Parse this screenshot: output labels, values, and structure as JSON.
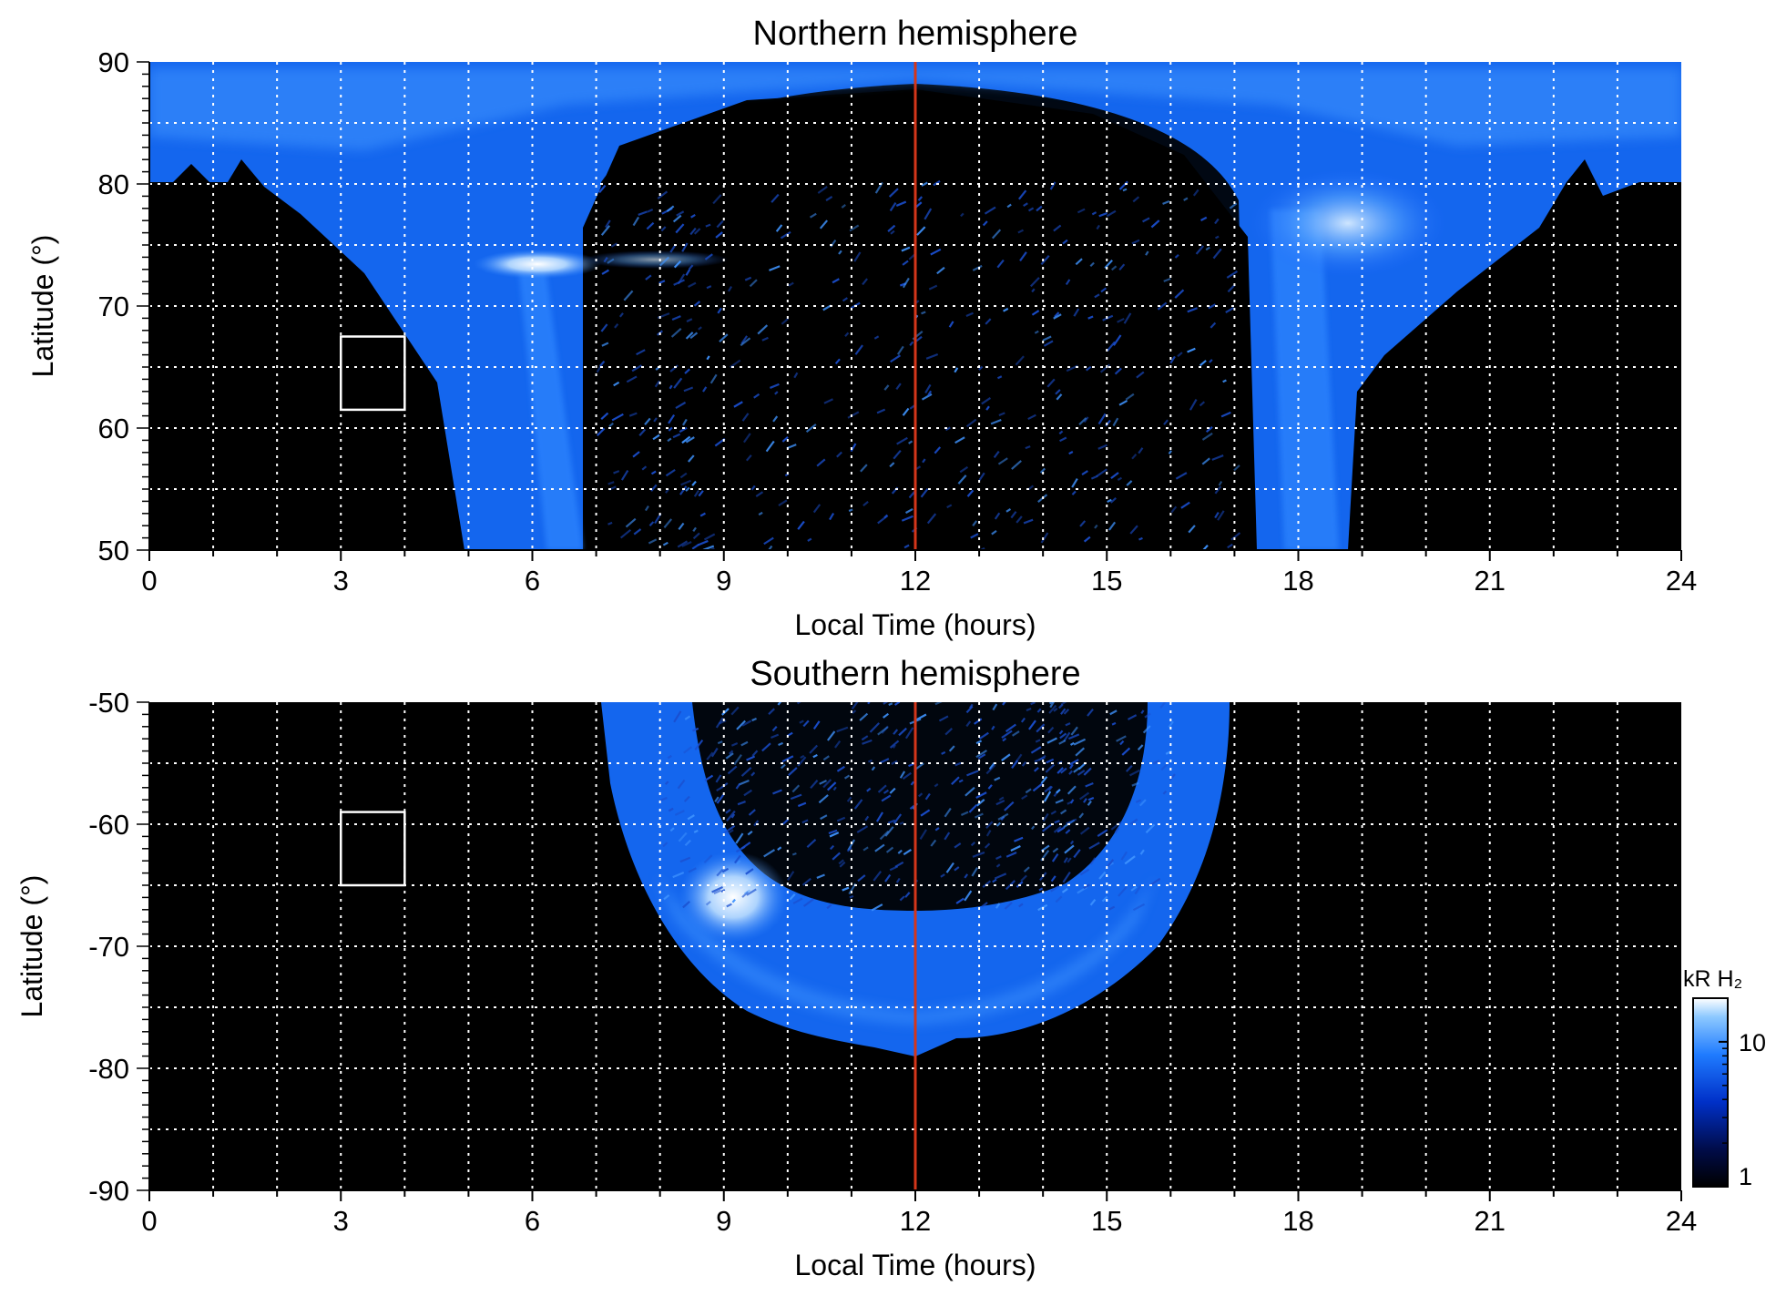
{
  "chart_data": [
    {
      "type": "heatmap",
      "title": "Northern hemisphere",
      "xlabel": "Local Time (hours)",
      "ylabel": "Latitude (°)",
      "xlim": [
        0,
        24
      ],
      "ylim": [
        50,
        90
      ],
      "xticks": [
        "0",
        "3",
        "6",
        "9",
        "12",
        "15",
        "18",
        "21",
        "24"
      ],
      "yticks": [
        "50",
        "60",
        "70",
        "80",
        "90"
      ],
      "grid": true,
      "noon_line_x": 12,
      "box": {
        "x0": 3,
        "x1": 4,
        "y0": 61.5,
        "y1": 67.5
      },
      "emission_regions": [
        {
          "shape": "polar cap band",
          "lt_range": [
            0,
            24
          ],
          "lat_range": [
            80,
            90
          ],
          "level": "moderate"
        },
        {
          "shape": "auroral oval edge",
          "lt_range": [
            5,
            7
          ],
          "lat_range": [
            50,
            78
          ],
          "level": "moderate"
        },
        {
          "shape": "dawn spot",
          "lt_center": 6.5,
          "lat_center": 73.5,
          "level": "bright"
        },
        {
          "shape": "dusk band",
          "lt_range": [
            17.5,
            19.5
          ],
          "lat_range": [
            50,
            78
          ],
          "level": "moderate"
        },
        {
          "shape": "dusk spot",
          "lt_center": 18.5,
          "lat_center": 75,
          "level": "bright"
        },
        {
          "shape": "noon sector speckle",
          "lt_range": [
            7,
            17
          ],
          "lat_range": [
            50,
            80
          ],
          "level": "faint"
        }
      ]
    },
    {
      "type": "heatmap",
      "title": "Southern hemisphere",
      "xlabel": "Local Time (hours)",
      "ylabel": "Latitude (°)",
      "xlim": [
        0,
        24
      ],
      "ylim": [
        -90,
        -50
      ],
      "xticks": [
        "0",
        "3",
        "6",
        "9",
        "12",
        "15",
        "18",
        "21",
        "24"
      ],
      "yticks": [
        "-50",
        "-60",
        "-70",
        "-80",
        "-90"
      ],
      "grid": true,
      "noon_line_x": 12,
      "box": {
        "x0": 3,
        "x1": 4,
        "y0": -65,
        "y1": -59
      },
      "emission_regions": [
        {
          "shape": "auroral oval ring",
          "lt_range": [
            7,
            17
          ],
          "lat_range": [
            -79,
            -50
          ],
          "level": "moderate"
        },
        {
          "shape": "bright spot",
          "lt_center": 9.2,
          "lat_center": -67,
          "level": "bright"
        },
        {
          "shape": "oval interior speckle",
          "lt_range": [
            8,
            16
          ],
          "lat_range": [
            -67,
            -50
          ],
          "level": "faint"
        }
      ]
    }
  ],
  "colorbar": {
    "label": "kR H₂",
    "scale": "log",
    "range": [
      1,
      20
    ],
    "ticks": [
      "1",
      "10"
    ],
    "colors": [
      "#000000",
      "#000c4a",
      "#0030c8",
      "#1f7bff",
      "#8cc8ff",
      "#ffffff"
    ]
  },
  "colors": {
    "noon_line": "#d4361a",
    "grid": "#ffffff",
    "background": "#000000"
  }
}
